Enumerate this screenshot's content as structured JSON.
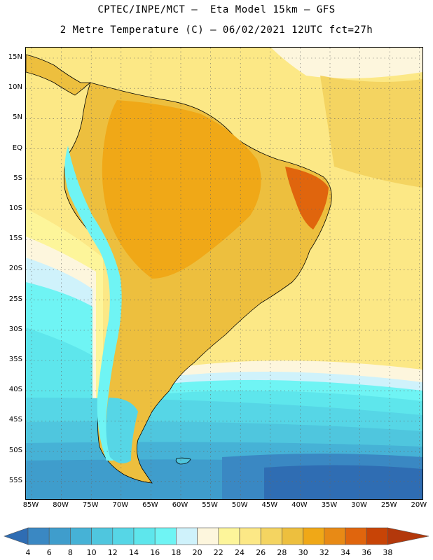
{
  "header": {
    "line1": "CPTEC/INPE/MCT –  Eta Model 15km – GFS",
    "line2": "2 Metre Temperature (C) – 06/02/2021 12UTC fct=27h"
  },
  "map": {
    "lat_labels": [
      "15N",
      "10N",
      "5N",
      "EQ",
      "5S",
      "10S",
      "15S",
      "20S",
      "25S",
      "30S",
      "35S",
      "40S",
      "45S",
      "50S",
      "55S"
    ],
    "lon_labels": [
      "85W",
      "80W",
      "75W",
      "70W",
      "65W",
      "60W",
      "55W",
      "50W",
      "45W",
      "40W",
      "35W",
      "30W",
      "25W",
      "20W"
    ],
    "grid_lines": "dotted"
  },
  "legend": {
    "levels": [
      "4",
      "6",
      "8",
      "10",
      "12",
      "14",
      "16",
      "18",
      "20",
      "22",
      "24",
      "26",
      "28",
      "30",
      "32",
      "34",
      "36",
      "38"
    ],
    "colors": [
      "#2f6db3",
      "#3a88c3",
      "#3f9dcc",
      "#46b2d6",
      "#4fc6de",
      "#56d6e6",
      "#5ee6ec",
      "#6ff4f4",
      "#cff2fb",
      "#fdf6dd",
      "#fdf59a",
      "#fce886",
      "#f4d461",
      "#edbf3e",
      "#f0a817",
      "#e88a15",
      "#e0650d",
      "#c84406",
      "#b3380b"
    ]
  }
}
